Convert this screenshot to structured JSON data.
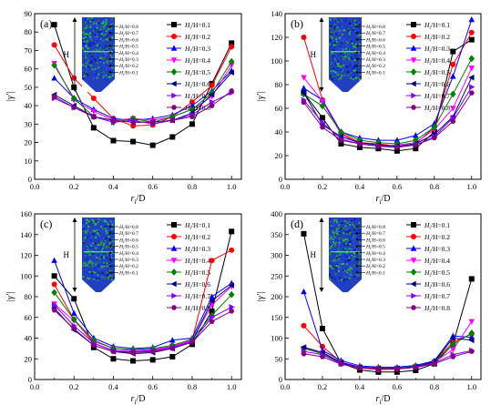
{
  "legend_labels": [
    "H_i/H=0.1",
    "H_i/H=0.2",
    "H_i/H=0.3",
    "H_i/H=0.4",
    "H_i/H=0.5",
    "H_i/H=0.6",
    "H_i/H=0.7",
    "H_i/H=0.8"
  ],
  "series_colors": [
    "#000000",
    "#ff0000",
    "#0000ff",
    "#ff00ff",
    "#008000",
    "#000080",
    "#8000ff",
    "#800080"
  ],
  "series_markers": [
    "square",
    "circle",
    "triangle-up",
    "triangle-down",
    "diamond",
    "triangle-left",
    "triangle-right",
    "hexagon"
  ],
  "inset": {
    "height_label": "H",
    "level_labels": [
      "H_i/H=0.8",
      "H_i/H=0.7",
      "H_i/H=0.6",
      "H_i/H=0.5",
      "H_i/H=0.4",
      "H_i/H=0.3",
      "H_i/H=0.2",
      "H_i/H=0.1"
    ]
  },
  "chart_data": [
    {
      "type": "line",
      "panel_label": "(a)",
      "xlabel": "r_i/D",
      "ylabel": "|γ'|",
      "xlim": [
        0.0,
        1.05
      ],
      "ylim": [
        0,
        90
      ],
      "xticks": [
        "0.0",
        "0.2",
        "0.4",
        "0.6",
        "0.8",
        "1.0"
      ],
      "yticks": [
        "0",
        "10",
        "20",
        "30",
        "40",
        "50",
        "60",
        "70",
        "80",
        "90"
      ],
      "x": [
        0.1,
        0.2,
        0.3,
        0.4,
        0.5,
        0.6,
        0.7,
        0.8,
        0.9,
        1.0
      ],
      "series": [
        {
          "name": "H_i/H=0.1",
          "values": [
            84,
            50,
            28,
            21,
            20.5,
            18.5,
            23,
            30,
            52,
            74
          ]
        },
        {
          "name": "H_i/H=0.2",
          "values": [
            73,
            55,
            44,
            33,
            29,
            29.5,
            34,
            42,
            51,
            72
          ]
        },
        {
          "name": "H_i/H=0.3",
          "values": [
            55,
            44,
            38,
            33,
            32,
            33,
            35,
            40,
            48,
            59
          ]
        },
        {
          "name": "H_i/H=0.4",
          "values": [
            63,
            43,
            37,
            32,
            33,
            32,
            34,
            38,
            45,
            62
          ]
        },
        {
          "name": "H_i/H=0.5",
          "values": [
            62,
            44,
            34,
            31,
            33,
            31,
            34,
            38,
            47,
            64
          ]
        },
        {
          "name": "H_i/H=0.6",
          "values": [
            46,
            40,
            34,
            32,
            31,
            31,
            32,
            36,
            46,
            58
          ]
        },
        {
          "name": "H_i/H=0.7",
          "values": [
            44,
            39,
            34,
            31,
            32,
            30,
            32,
            35,
            42,
            47
          ]
        },
        {
          "name": "H_i/H=0.8",
          "values": [
            45,
            39,
            34,
            32,
            31,
            31,
            32,
            34,
            40,
            48
          ]
        }
      ]
    },
    {
      "type": "line",
      "panel_label": "(b)",
      "xlabel": "r_i/D",
      "ylabel": "|γ'|",
      "xlim": [
        0.0,
        1.05
      ],
      "ylim": [
        0,
        140
      ],
      "xticks": [
        "0.0",
        "0.2",
        "0.4",
        "0.6",
        "0.8",
        "1.0"
      ],
      "yticks": [
        "0",
        "20",
        "40",
        "60",
        "80",
        "100",
        "120",
        "140"
      ],
      "x": [
        0.1,
        0.2,
        0.3,
        0.4,
        0.5,
        0.6,
        0.7,
        0.8,
        0.9,
        1.0
      ],
      "series": [
        {
          "name": "H_i/H=0.1",
          "values": [
            73,
            52,
            30,
            27,
            26,
            24,
            26,
            40,
            108,
            118
          ]
        },
        {
          "name": "H_i/H=0.2",
          "values": [
            120,
            67,
            39,
            31,
            30,
            28,
            30,
            44,
            97,
            124
          ]
        },
        {
          "name": "H_i/H=0.3",
          "values": [
            77,
            67,
            40,
            35,
            33,
            33,
            37,
            47,
            87,
            135
          ]
        },
        {
          "name": "H_i/H=0.4",
          "values": [
            86,
            66,
            38,
            30,
            28,
            29,
            31,
            42,
            60,
            94
          ]
        },
        {
          "name": "H_i/H=0.5",
          "values": [
            72,
            62,
            40,
            33,
            31,
            30,
            33,
            44,
            72,
            102
          ]
        },
        {
          "name": "H_i/H=0.6",
          "values": [
            73,
            46,
            36,
            31,
            29,
            28,
            30,
            38,
            53,
            86
          ]
        },
        {
          "name": "H_i/H=0.7",
          "values": [
            67,
            48,
            34,
            30,
            28,
            27,
            29,
            36,
            52,
            78
          ]
        },
        {
          "name": "H_i/H=0.8",
          "values": [
            65,
            44,
            33,
            30,
            28,
            27,
            29,
            35,
            49,
            73
          ]
        }
      ]
    },
    {
      "type": "line",
      "panel_label": "(c)",
      "xlabel": "r_i/D",
      "ylabel": "|γ'|",
      "xlim": [
        0.0,
        1.05
      ],
      "ylim": [
        0,
        160
      ],
      "xticks": [
        "0.0",
        "0.2",
        "0.4",
        "0.6",
        "0.8",
        "1.0"
      ],
      "yticks": [
        "0",
        "20",
        "40",
        "60",
        "80",
        "100",
        "120",
        "140",
        "160"
      ],
      "x": [
        0.1,
        0.2,
        0.3,
        0.4,
        0.5,
        0.6,
        0.7,
        0.8,
        0.9,
        1.0
      ],
      "series": [
        {
          "name": "H_i/H=0.1",
          "values": [
            100,
            78,
            31,
            20,
            18,
            19,
            22,
            34,
            66,
            143
          ]
        },
        {
          "name": "H_i/H=0.2",
          "values": [
            92,
            58,
            35,
            28,
            26,
            28,
            32,
            38,
            115,
            125
          ]
        },
        {
          "name": "H_i/H=0.3",
          "values": [
            115,
            64,
            40,
            32,
            30,
            31,
            38,
            40,
            80,
            93
          ]
        },
        {
          "name": "H_i/H=0.4",
          "values": [
            73,
            57,
            37,
            30,
            28,
            29,
            32,
            38,
            72,
            90
          ]
        },
        {
          "name": "H_i/H=0.5",
          "values": [
            84,
            58,
            38,
            30,
            29,
            30,
            33,
            39,
            62,
            82
          ]
        },
        {
          "name": "H_i/H=0.6",
          "values": [
            69,
            48,
            33,
            27,
            25,
            26,
            30,
            37,
            76,
            91
          ]
        },
        {
          "name": "H_i/H=0.7",
          "values": [
            72,
            52,
            35,
            28,
            27,
            28,
            31,
            37,
            60,
            70
          ]
        },
        {
          "name": "H_i/H=0.8",
          "values": [
            67,
            49,
            33,
            27,
            26,
            27,
            30,
            36,
            56,
            66
          ]
        }
      ]
    },
    {
      "type": "line",
      "panel_label": "(d)",
      "xlabel": "r_i/D",
      "ylabel": "|γ'|",
      "xlim": [
        0.0,
        1.05
      ],
      "ylim": [
        0,
        400
      ],
      "xticks": [
        "0.0",
        "0.2",
        "0.4",
        "0.6",
        "0.8",
        "1.0"
      ],
      "yticks": [
        "0",
        "50",
        "100",
        "150",
        "200",
        "250",
        "300",
        "350",
        "400"
      ],
      "x": [
        0.1,
        0.2,
        0.3,
        0.4,
        0.5,
        0.6,
        0.7,
        0.8,
        0.9,
        1.0
      ],
      "series": [
        {
          "name": "H_i/H=0.1",
          "values": [
            352,
            123,
            40,
            23,
            18,
            18,
            22,
            38,
            85,
            243
          ]
        },
        {
          "name": "H_i/H=0.2",
          "values": [
            130,
            80,
            42,
            28,
            24,
            25,
            30,
            44,
            90,
            110
          ]
        },
        {
          "name": "H_i/H=0.3",
          "values": [
            212,
            70,
            46,
            33,
            30,
            30,
            34,
            45,
            105,
            102
          ]
        },
        {
          "name": "H_i/H=0.4",
          "values": [
            75,
            65,
            42,
            30,
            27,
            27,
            32,
            42,
            72,
            140
          ]
        },
        {
          "name": "H_i/H=0.5",
          "values": [
            75,
            62,
            40,
            30,
            28,
            28,
            32,
            42,
            85,
            112
          ]
        },
        {
          "name": "H_i/H=0.6",
          "values": [
            78,
            65,
            41,
            30,
            27,
            27,
            31,
            43,
            100,
            95
          ]
        },
        {
          "name": "H_i/H=0.7",
          "values": [
            68,
            60,
            38,
            29,
            26,
            27,
            30,
            40,
            60,
            70
          ]
        },
        {
          "name": "H_i/H=0.8",
          "values": [
            62,
            55,
            37,
            28,
            26,
            26,
            29,
            38,
            55,
            68
          ]
        }
      ]
    }
  ]
}
